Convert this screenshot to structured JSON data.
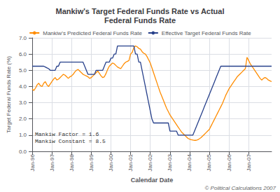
{
  "chart_data": {
    "type": "line",
    "title": "Mankiw's Target Federal Funds Rate vs Actual\nFederal Funds Rate",
    "xlabel": "Calendar Date",
    "ylabel": "Target Federal Funds Rate (%)",
    "annotations": [
      "Mankiw Factor = 1.6\nMankiw Constant = 8.5",
      "© Political Calculations 2007"
    ],
    "categories": [
      "Jan-96",
      null,
      null,
      null,
      null,
      null,
      null,
      null,
      null,
      null,
      null,
      null,
      "Jan-97",
      null,
      null,
      null,
      null,
      null,
      null,
      null,
      null,
      null,
      null,
      null,
      "Jan-98",
      null,
      null,
      null,
      null,
      null,
      null,
      null,
      null,
      null,
      null,
      null,
      "Jan-99",
      null,
      null,
      null,
      null,
      null,
      null,
      null,
      null,
      null,
      null,
      null,
      "Jan-00",
      null,
      null,
      null,
      null,
      null,
      null,
      null,
      null,
      null,
      null,
      null,
      "Jan-01",
      null,
      null,
      null,
      null,
      null,
      null,
      null,
      null,
      null,
      null,
      null,
      "Jan-02",
      null,
      null,
      null,
      null,
      null,
      null,
      null,
      null,
      null,
      null,
      null,
      "Jan-03",
      null,
      null,
      null,
      null,
      null,
      null,
      null,
      null,
      null,
      null,
      null,
      "Jan-04",
      null,
      null,
      null,
      null,
      null,
      null,
      null,
      null,
      null,
      null,
      null,
      "Jan-05",
      null,
      null,
      null,
      null,
      null,
      null,
      null,
      null,
      null,
      null,
      null,
      "Jan-06",
      null,
      null,
      null,
      null,
      null,
      null,
      null,
      null,
      null,
      null,
      null,
      "Jan-07",
      null,
      null,
      null,
      null,
      null,
      null,
      null,
      null,
      null,
      null,
      null,
      null,
      null,
      null
    ],
    "series": [
      {
        "name": "Mankiw's Predicted Federal Funds Rate",
        "color": "#FF8C00",
        "values": [
          3.85,
          3.75,
          3.9,
          4.1,
          4.2,
          4.05,
          4.0,
          4.2,
          4.3,
          4.1,
          4.0,
          4.15,
          4.3,
          4.45,
          4.55,
          4.4,
          4.45,
          4.55,
          4.65,
          4.75,
          4.7,
          4.6,
          4.5,
          4.6,
          4.65,
          4.75,
          4.9,
          5.0,
          5.05,
          4.95,
          4.85,
          4.75,
          4.7,
          4.65,
          4.6,
          4.5,
          4.55,
          4.65,
          4.75,
          4.85,
          4.95,
          4.8,
          4.65,
          4.55,
          4.6,
          4.8,
          5.05,
          5.25,
          5.35,
          5.45,
          5.4,
          5.3,
          5.2,
          5.15,
          5.1,
          5.25,
          5.4,
          5.5,
          5.55,
          5.6,
          6.0,
          6.1,
          6.4,
          6.5,
          6.45,
          6.35,
          6.3,
          6.15,
          6.05,
          6.0,
          5.85,
          5.65,
          5.45,
          5.15,
          4.85,
          4.55,
          4.25,
          3.95,
          3.65,
          3.4,
          3.15,
          2.9,
          2.65,
          2.45,
          2.25,
          2.1,
          1.95,
          1.8,
          1.65,
          1.5,
          1.35,
          1.2,
          1.1,
          1.0,
          0.9,
          0.8,
          0.75,
          0.72,
          0.7,
          0.68,
          0.68,
          0.72,
          0.78,
          0.85,
          0.95,
          1.05,
          1.15,
          1.25,
          1.35,
          1.55,
          1.75,
          1.95,
          2.15,
          2.35,
          2.55,
          2.75,
          2.95,
          3.2,
          3.45,
          3.65,
          3.85,
          4.0,
          4.15,
          4.3,
          4.45,
          4.6,
          4.7,
          4.8,
          4.9,
          5.0,
          5.1,
          5.8,
          5.6,
          5.4,
          5.25,
          5.1,
          4.95,
          4.8,
          4.65,
          4.5,
          4.4,
          4.5,
          4.55,
          4.5,
          4.4,
          4.35,
          4.3
        ]
      },
      {
        "name": "Effective Target Federal Funds Rate",
        "color": "#27408B",
        "values": [
          5.25,
          5.25,
          5.25,
          5.25,
          5.25,
          5.25,
          5.25,
          5.25,
          5.2,
          5.15,
          5.1,
          5.0,
          5.0,
          5.0,
          5.0,
          5.25,
          5.25,
          5.5,
          5.5,
          5.5,
          5.5,
          5.5,
          5.5,
          5.5,
          5.5,
          5.5,
          5.5,
          5.5,
          5.5,
          5.5,
          5.5,
          5.5,
          5.25,
          5.0,
          4.75,
          4.75,
          4.75,
          4.75,
          4.75,
          5.0,
          5.0,
          5.0,
          5.0,
          5.0,
          5.25,
          5.5,
          5.5,
          5.5,
          5.75,
          5.75,
          6.0,
          6.0,
          6.5,
          6.5,
          6.5,
          6.5,
          6.5,
          6.5,
          6.5,
          6.5,
          6.5,
          6.5,
          6.5,
          6.0,
          6.0,
          5.5,
          5.5,
          5.0,
          4.5,
          4.0,
          3.5,
          3.0,
          2.5,
          2.0,
          1.75,
          1.75,
          1.75,
          1.75,
          1.75,
          1.75,
          1.75,
          1.75,
          1.75,
          1.75,
          1.25,
          1.25,
          1.25,
          1.25,
          1.25,
          1.0,
          1.0,
          1.0,
          1.0,
          1.0,
          1.0,
          1.0,
          1.0,
          1.0,
          1.0,
          1.25,
          1.5,
          1.75,
          2.0,
          2.25,
          2.5,
          2.75,
          3.0,
          3.25,
          3.5,
          3.75,
          4.0,
          4.25,
          4.5,
          4.75,
          5.0,
          5.25,
          5.25,
          5.25,
          5.25,
          5.25,
          5.25,
          5.25,
          5.25,
          5.25,
          5.25,
          5.25,
          5.25,
          5.25,
          5.25,
          5.25,
          5.25,
          5.25,
          5.25,
          5.25,
          5.25,
          5.25,
          5.25,
          5.25,
          5.25,
          5.25,
          5.25,
          5.25,
          5.25,
          5.25,
          5.25,
          5.25,
          5.25
        ]
      }
    ],
    "ylim": [
      0.0,
      7.0
    ],
    "yticks": [
      {
        "value": 0.0,
        "label": "0.0"
      },
      {
        "value": 1.0,
        "label": "1.0"
      },
      {
        "value": 2.0,
        "label": "2.0"
      },
      {
        "value": 3.0,
        "label": "3.0"
      },
      {
        "value": 4.0,
        "label": "4.0"
      },
      {
        "value": 5.0,
        "label": "5.0"
      },
      {
        "value": 6.0,
        "label": "6.0"
      },
      {
        "value": 7.0,
        "label": "7.0"
      }
    ],
    "grid": true,
    "legend": "top"
  }
}
